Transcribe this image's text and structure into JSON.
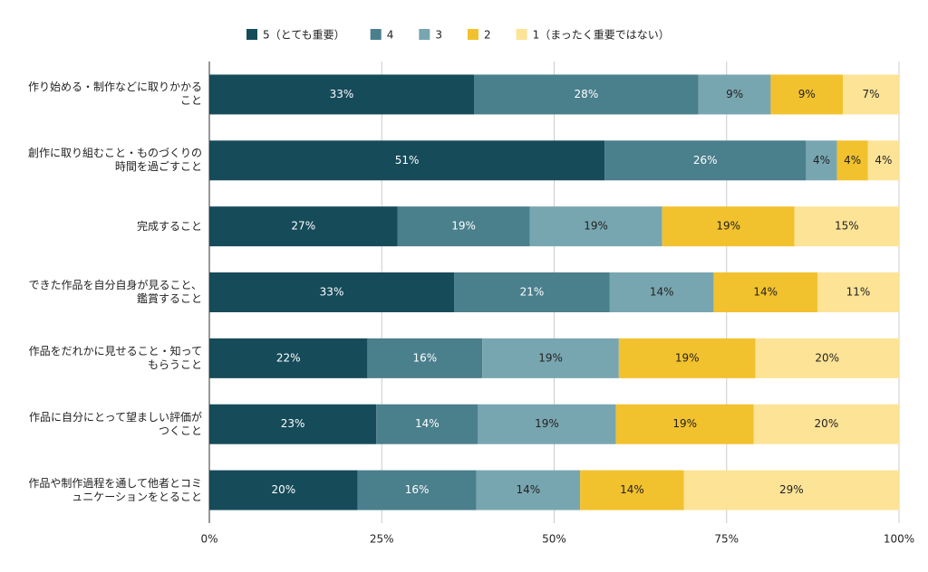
{
  "chart_data": {
    "type": "bar",
    "orientation": "horizontal",
    "stacked": "percent",
    "categories": [
      "作り始める・制作などに取りかかること",
      "創作に取り組むこと・ものづくりの時間を過ごすこと",
      "完成すること",
      "できた作品を自分自身が見ること、鑑賞すること",
      "作品をだれかに見せること・知ってもらうこと",
      "作品に自分にとって望ましい評価がつくこと",
      "作品や制作過程を通して他者とコミュニケーションをとること"
    ],
    "series": [
      {
        "name": "5（とても重要）",
        "color": "#164b5a",
        "values": [
          33,
          51,
          27,
          33,
          22,
          23,
          20
        ],
        "value_labels": [
          "33%",
          "51%",
          "27%",
          "33%",
          "22%",
          "23%",
          "20%"
        ]
      },
      {
        "name": "4",
        "color": "#4a7f8c",
        "values": [
          28,
          26,
          19,
          21,
          16,
          14,
          16
        ],
        "value_labels": [
          "28%",
          "26%",
          "19%",
          "21%",
          "16%",
          "14%",
          "16%"
        ]
      },
      {
        "name": "3",
        "color": "#78a6b0",
        "values": [
          9,
          4,
          19,
          14,
          19,
          19,
          14
        ],
        "value_labels": [
          "9%",
          "4%",
          "19%",
          "14%",
          "19%",
          "19%",
          "14%"
        ]
      },
      {
        "name": "2",
        "color": "#f2c12e",
        "values": [
          9,
          4,
          19,
          14,
          19,
          19,
          14
        ],
        "value_labels": [
          "9%",
          "4%",
          "19%",
          "14%",
          "19%",
          "19%",
          "14%"
        ]
      },
      {
        "name": "1（まったく重要ではない）",
        "color": "#fde396",
        "values": [
          7,
          4,
          15,
          11,
          20,
          20,
          29
        ],
        "value_labels": [
          "7%",
          "4%",
          "15%",
          "11%",
          "20%",
          "20%",
          "29%"
        ]
      }
    ],
    "xlim": [
      0,
      100
    ],
    "xticks": [
      {
        "value": 0,
        "label": "0%"
      },
      {
        "value": 25,
        "label": "25%"
      },
      {
        "value": 50,
        "label": "50%"
      },
      {
        "value": 75,
        "label": "75%"
      },
      {
        "value": 100,
        "label": "100%"
      }
    ],
    "grid": true,
    "legend": "top"
  }
}
